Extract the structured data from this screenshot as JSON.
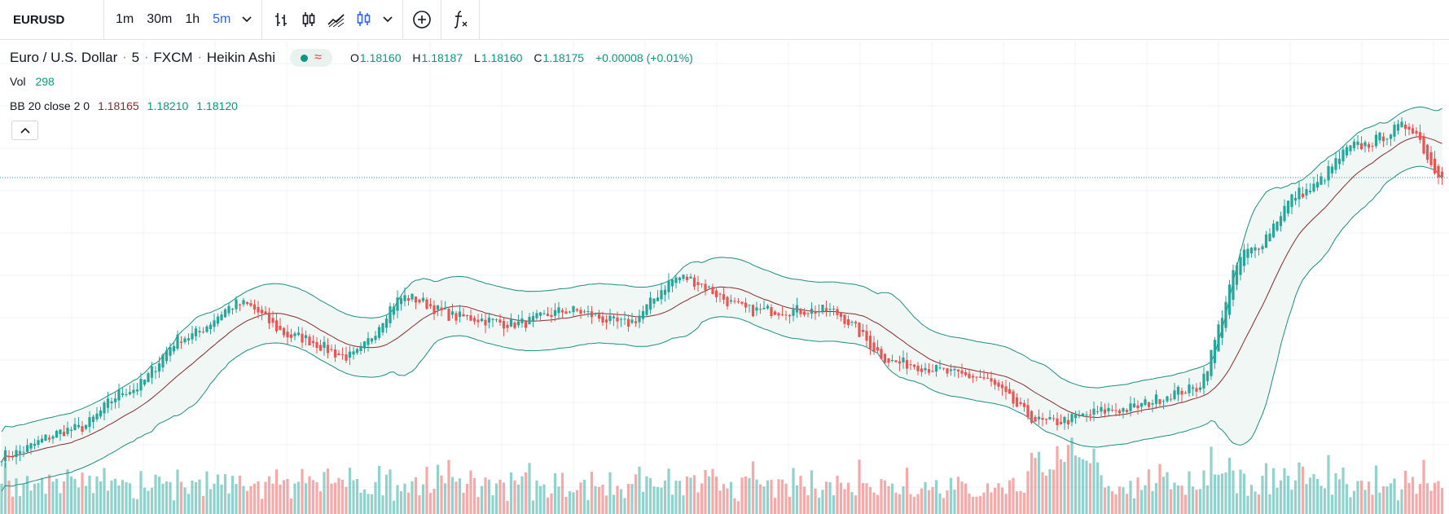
{
  "toolbar": {
    "symbol": "EURUSD",
    "timeframes": [
      "1m",
      "30m",
      "1h",
      "5m"
    ],
    "active_timeframe": "5m",
    "icons": [
      "bars-icon",
      "candles-icon",
      "area-icon",
      "heikin-ashi-icon",
      "chevron-down-icon",
      "add-compare-icon",
      "indicators-icon"
    ]
  },
  "legend": {
    "title": "Euro / U.S. Dollar",
    "interval": "5",
    "exchange": "FXCM",
    "style": "Heikin Ashi",
    "ohlc": {
      "o_label": "O",
      "o": "1.18160",
      "h_label": "H",
      "h": "1.18187",
      "l_label": "L",
      "l": "1.18160",
      "c_label": "C",
      "c": "1.18175",
      "change": "+0.00008 (+0.01%)"
    },
    "vol_label": "Vol",
    "vol_value": "298",
    "bb_label": "BB 20 close 2 0",
    "bb_basis": "1.18165",
    "bb_upper": "1.18210",
    "bb_lower": "1.18120"
  },
  "colors": {
    "up": "#26a69a",
    "down": "#ef5350",
    "basis": "#8b2b2b",
    "band": "#1b8f82",
    "band_fill": "#f0f7f5",
    "accent": "#2962ff"
  },
  "chart_data": {
    "type": "candlestick",
    "style": "Heikin Ashi",
    "series_anchors_price": [
      [
        0,
        1.179
      ],
      [
        20,
        1.1794
      ],
      [
        35,
        1.18
      ],
      [
        50,
        1.1808
      ],
      [
        65,
        1.1813
      ],
      [
        80,
        1.1808
      ],
      [
        95,
        1.1805
      ],
      [
        110,
        1.1814
      ],
      [
        125,
        1.1811
      ],
      [
        140,
        1.181
      ],
      [
        155,
        1.1812
      ],
      [
        170,
        1.181
      ],
      [
        185,
        1.1817
      ],
      [
        205,
        1.1812
      ],
      [
        225,
        1.1812
      ],
      [
        245,
        1.1804
      ],
      [
        265,
        1.1802
      ],
      [
        285,
        1.1795
      ],
      [
        305,
        1.1797
      ],
      [
        325,
        1.18
      ],
      [
        340,
        1.1821
      ],
      [
        355,
        1.183
      ],
      [
        370,
        1.1837
      ],
      [
        384,
        1.184
      ],
      [
        392,
        1.1833
      ]
    ],
    "bollinger": {
      "length": 20,
      "source": "close",
      "mult": 2,
      "offset": 0
    },
    "volume_visible": true,
    "ylim": [
      1.1781,
      1.1848
    ],
    "grid": true,
    "last_price_line": true
  }
}
